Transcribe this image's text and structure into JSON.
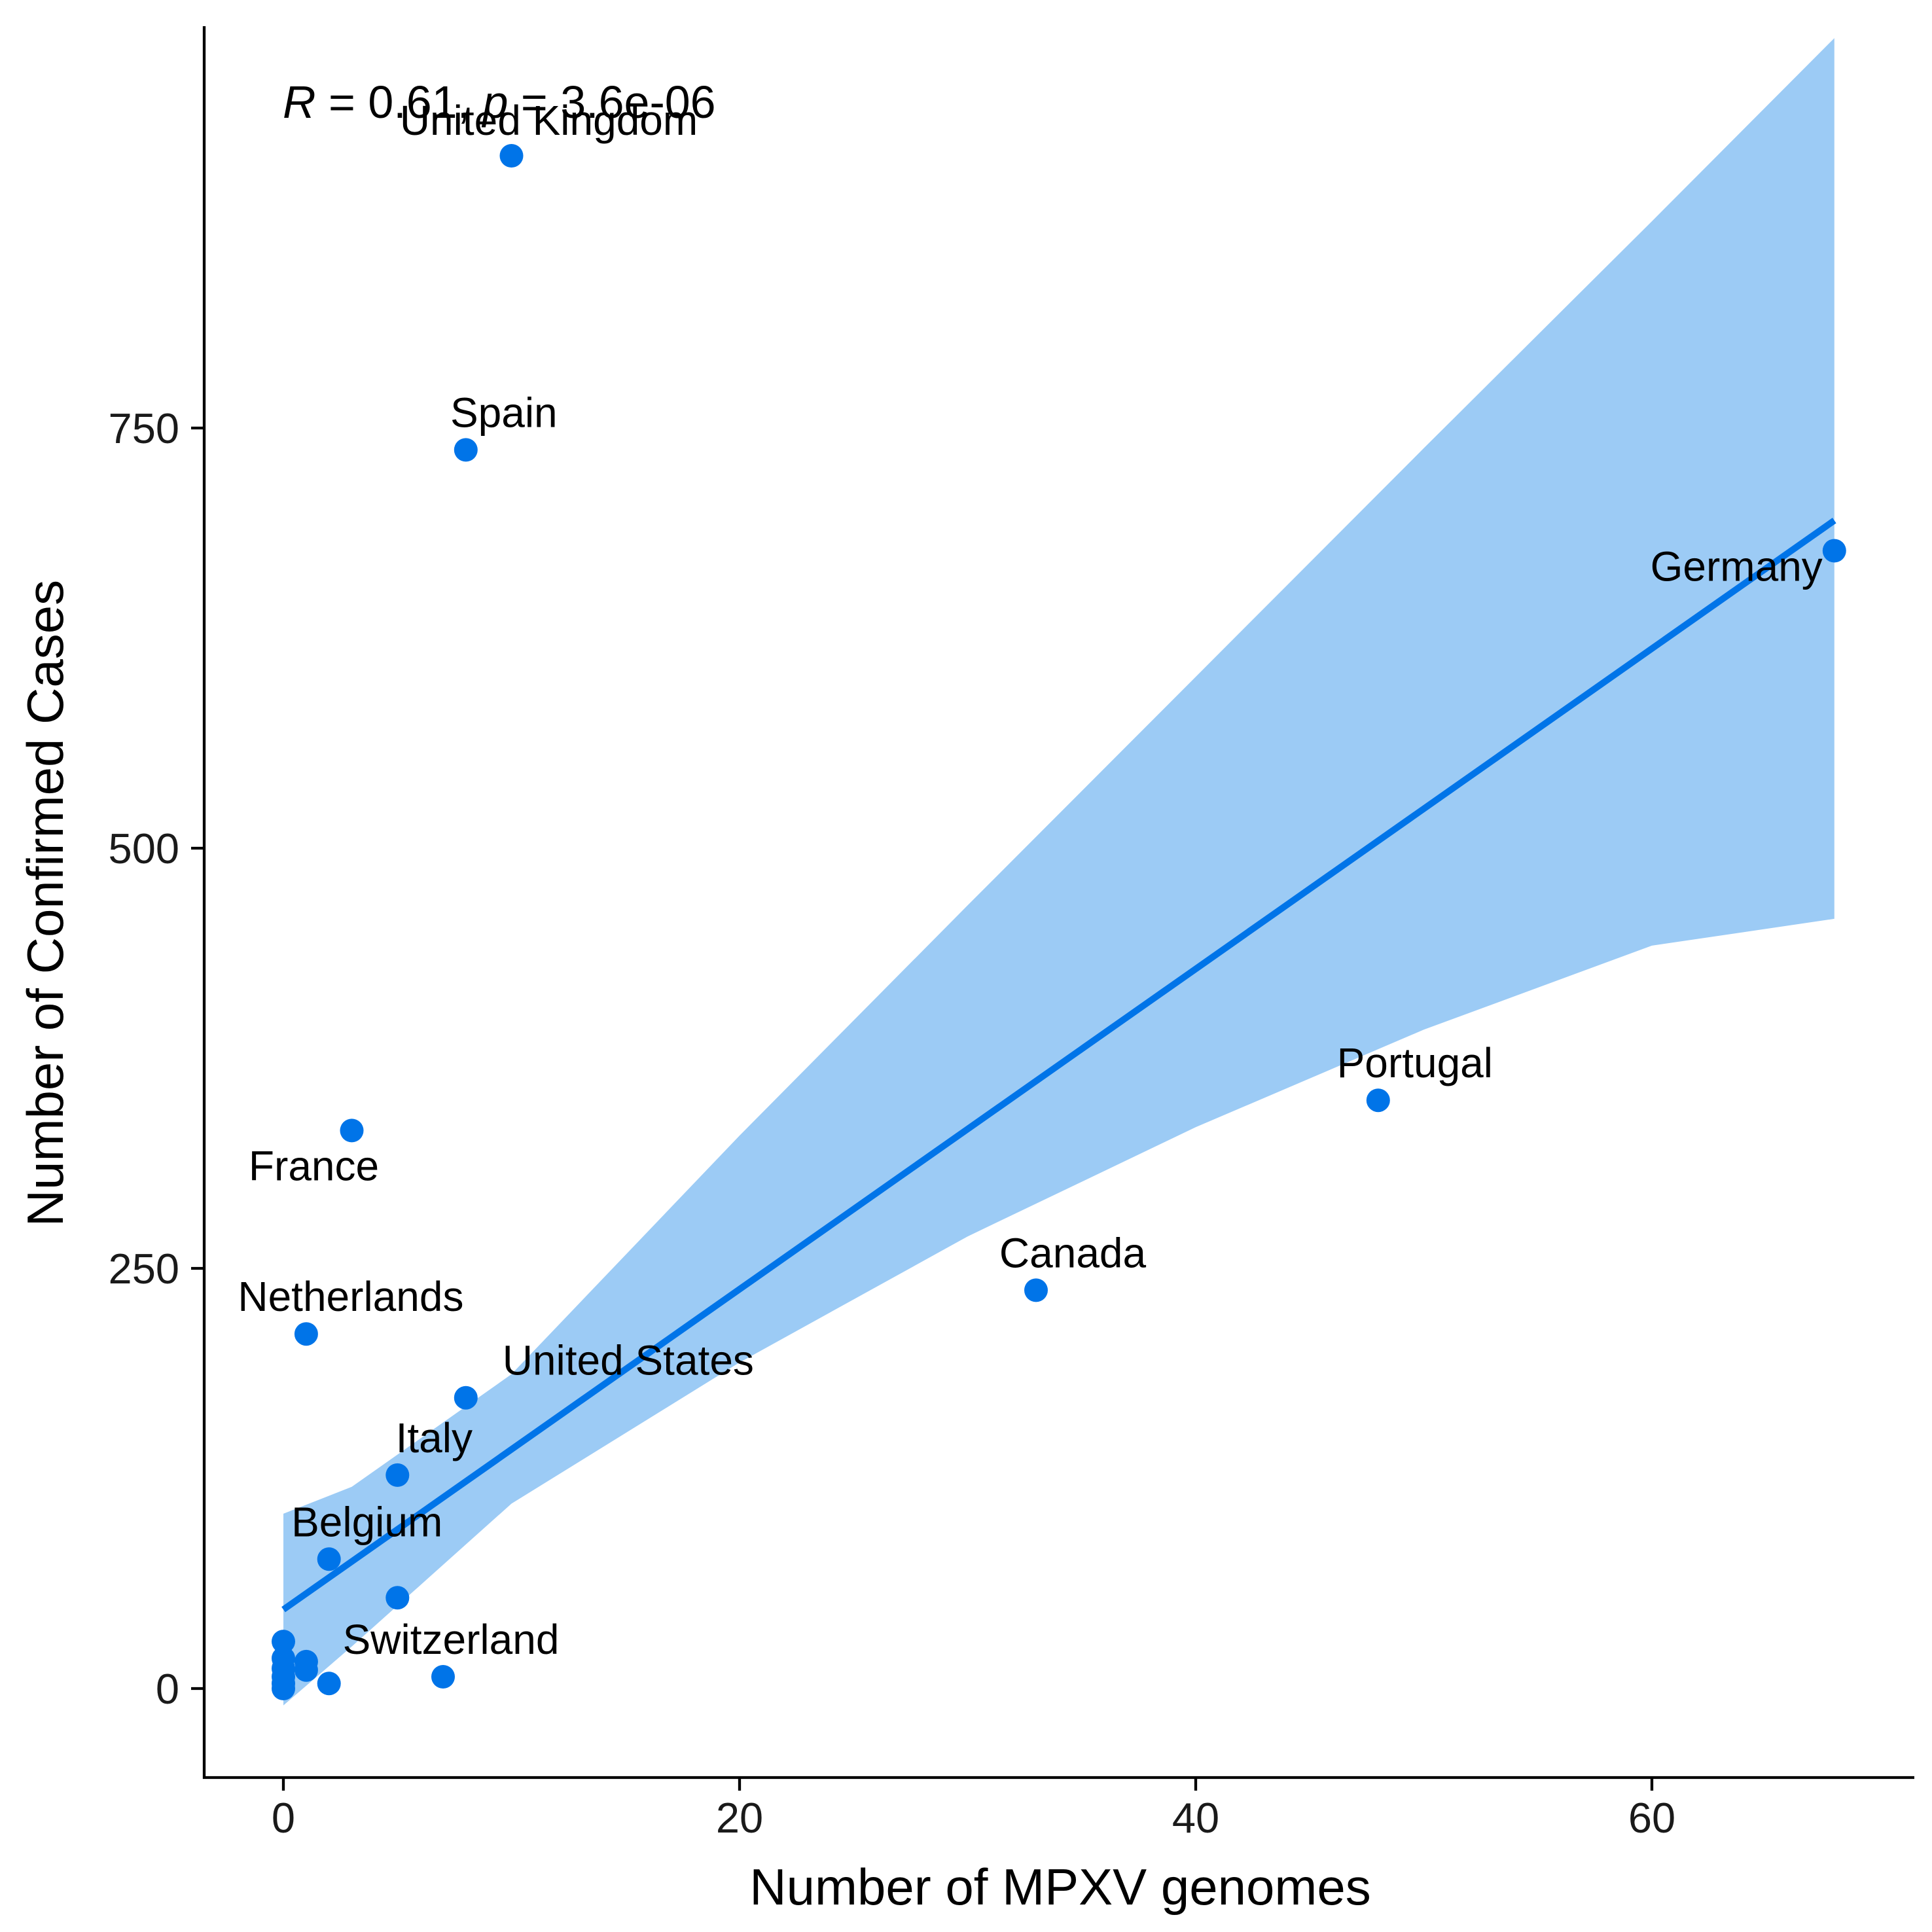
{
  "chart_data": {
    "type": "scatter",
    "xlabel": "Number of MPXV genomes",
    "ylabel": "Number of Confirmed Cases",
    "xlim": [
      -3.5,
      71
    ],
    "ylim": [
      -50,
      990
    ],
    "x_ticks": [
      0,
      20,
      40,
      60
    ],
    "y_ticks": [
      0,
      250,
      500,
      750
    ],
    "x_tick_labels": [
      "0",
      "20",
      "40",
      "60"
    ],
    "y_tick_labels": [
      "0",
      "250",
      "500",
      "750"
    ],
    "grid": false,
    "legend": "none",
    "annotation": {
      "r_symbol": "R",
      "r_text": " = 0.61, ",
      "p_symbol": "p",
      "p_text": " = 3.6e-06"
    },
    "points": [
      {
        "x": 10,
        "y": 912,
        "label": "United Kingdom"
      },
      {
        "x": 8,
        "y": 737,
        "label": "Spain"
      },
      {
        "x": 68,
        "y": 677,
        "label": "Germany"
      },
      {
        "x": 48,
        "y": 350,
        "label": "Portugal"
      },
      {
        "x": 3,
        "y": 332,
        "label": "France"
      },
      {
        "x": 33,
        "y": 237,
        "label": "Canada"
      },
      {
        "x": 1,
        "y": 211,
        "label": "Netherlands"
      },
      {
        "x": 8,
        "y": 173,
        "label": "United States"
      },
      {
        "x": 5,
        "y": 127,
        "label": "Italy"
      },
      {
        "x": 2,
        "y": 77,
        "label": "Belgium"
      },
      {
        "x": 5,
        "y": 54,
        "label": ""
      },
      {
        "x": 7,
        "y": 7,
        "label": "Switzerland"
      },
      {
        "x": 2,
        "y": 3,
        "label": ""
      },
      {
        "x": 1,
        "y": 16,
        "label": ""
      },
      {
        "x": 1,
        "y": 11,
        "label": ""
      },
      {
        "x": 0,
        "y": 28,
        "label": ""
      },
      {
        "x": 0,
        "y": 18,
        "label": ""
      },
      {
        "x": 0,
        "y": 12,
        "label": ""
      },
      {
        "x": 0,
        "y": 7,
        "label": ""
      },
      {
        "x": 0,
        "y": 3,
        "label": ""
      },
      {
        "x": 0,
        "y": 0,
        "label": ""
      }
    ],
    "fit_line": {
      "x": [
        0,
        68
      ],
      "y": [
        47,
        695
      ]
    },
    "confidence_band": {
      "x": [
        0,
        3,
        10,
        20,
        30,
        40,
        50,
        60,
        68
      ],
      "upper": [
        104,
        120,
        187,
        329,
        466,
        602,
        738,
        873,
        982
      ],
      "lower": [
        -10,
        25,
        110,
        194,
        269,
        334,
        392,
        442,
        458
      ]
    },
    "colors": {
      "points": "#0074e8",
      "fit_line": "#0074e8",
      "band": "#9ccbf5"
    }
  }
}
